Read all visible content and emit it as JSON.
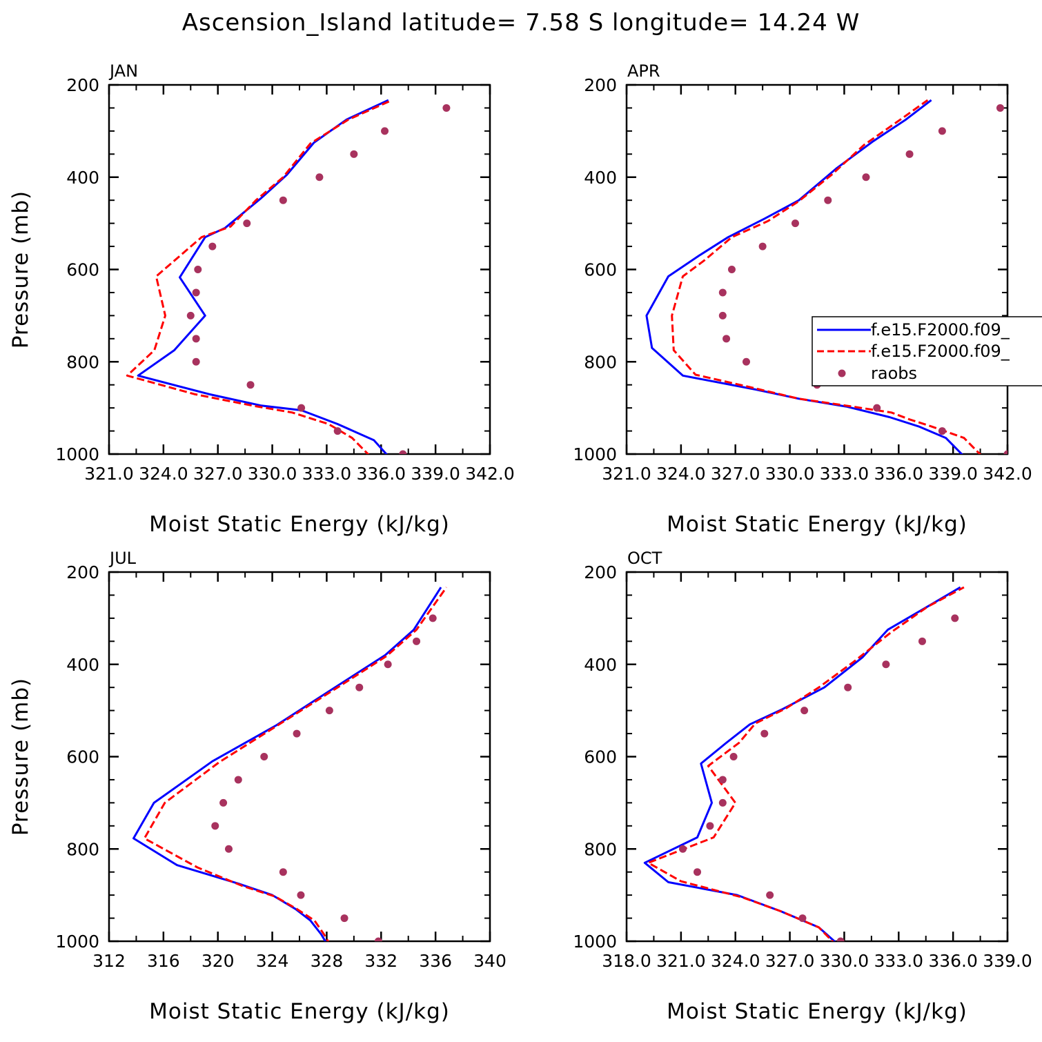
{
  "title": "Ascension_Island  latitude= 7.58 S longitude= 14.24 W",
  "colors": {
    "series1": "#0000ff",
    "series2": "#ff0000",
    "raobs": "#a8325e"
  },
  "legend": {
    "entries": [
      "f.e15.F2000.f09_",
      "f.e15.F2000.f09_",
      "raobs"
    ]
  },
  "chart_data": [
    {
      "type": "line",
      "label": "JAN",
      "xlabel": "Moist Static Energy (kJ/kg)",
      "ylabel": "Pressure (mb)",
      "xlim": [
        321,
        342
      ],
      "ylim": [
        1000,
        200
      ],
      "xticks": [
        321,
        324,
        327,
        330,
        333,
        336,
        339,
        342
      ],
      "xtick_labels": [
        "321.0",
        "324.0",
        "327.0",
        "330.0",
        "333.0",
        "336.0",
        "339.0",
        "342.0"
      ],
      "yticks": [
        200,
        400,
        600,
        800,
        1000
      ],
      "series": [
        {
          "name": "f.e15.F2000.f09_",
          "style": "solid",
          "color": "#0000ff",
          "points": [
            [
              336.4,
              1005
            ],
            [
              335.6,
              970
            ],
            [
              333.6,
              935
            ],
            [
              331.6,
              905
            ],
            [
              329.4,
              895
            ],
            [
              326.5,
              870
            ],
            [
              322.6,
              830
            ],
            [
              324.6,
              775
            ],
            [
              326.3,
              700
            ],
            [
              324.9,
              617
            ],
            [
              326.3,
              530
            ],
            [
              327.4,
              510
            ],
            [
              329.4,
              445
            ],
            [
              330.8,
              395
            ],
            [
              332.3,
              325
            ],
            [
              334.1,
              275
            ],
            [
              336.4,
              233
            ]
          ]
        },
        {
          "name": "f.e15.F2000.f09_",
          "style": "dashed",
          "color": "#ff0000",
          "points": [
            [
              335.4,
              1005
            ],
            [
              334.4,
              965
            ],
            [
              333.1,
              935
            ],
            [
              331.1,
              910
            ],
            [
              328.9,
              895
            ],
            [
              325.7,
              870
            ],
            [
              322.0,
              830
            ],
            [
              323.5,
              775
            ],
            [
              324.1,
              700
            ],
            [
              323.6,
              615
            ],
            [
              326.1,
              530
            ],
            [
              327.7,
              507
            ],
            [
              329.1,
              450
            ],
            [
              330.6,
              400
            ],
            [
              332.1,
              327
            ],
            [
              334.2,
              275
            ],
            [
              336.6,
              233
            ]
          ]
        },
        {
          "name": "raobs",
          "style": "markers",
          "color": "#a8325e",
          "points": [
            [
              339.6,
              250
            ],
            [
              336.2,
              300
            ],
            [
              334.5,
              350
            ],
            [
              332.6,
              400
            ],
            [
              330.6,
              450
            ],
            [
              328.6,
              500
            ],
            [
              326.7,
              550
            ],
            [
              325.9,
              600
            ],
            [
              325.8,
              650
            ],
            [
              325.5,
              700
            ],
            [
              325.8,
              750
            ],
            [
              325.8,
              800
            ],
            [
              328.8,
              850
            ],
            [
              331.6,
              900
            ],
            [
              333.6,
              950
            ],
            [
              337.2,
              1000
            ]
          ]
        }
      ]
    },
    {
      "type": "line",
      "label": "APR",
      "xlabel": "Moist Static Energy (kJ/kg)",
      "ylabel": "",
      "xlim": [
        321,
        342
      ],
      "ylim": [
        1000,
        200
      ],
      "xticks": [
        321,
        324,
        327,
        330,
        333,
        336,
        339,
        342
      ],
      "xtick_labels": [
        "321.0",
        "324.0",
        "327.0",
        "330.0",
        "333.0",
        "336.0",
        "339.0",
        "342.0"
      ],
      "yticks": [
        200,
        400,
        600,
        800,
        1000
      ],
      "series": [
        {
          "name": "f.e15.F2000.f09_",
          "style": "solid",
          "color": "#0000ff",
          "points": [
            [
              339.6,
              1005
            ],
            [
              338.6,
              965
            ],
            [
              337.1,
              940
            ],
            [
              335.5,
              920
            ],
            [
              333.1,
              897
            ],
            [
              330.5,
              880
            ],
            [
              328.1,
              860
            ],
            [
              324.1,
              830
            ],
            [
              322.4,
              770
            ],
            [
              322.1,
              700
            ],
            [
              323.3,
              615
            ],
            [
              325.0,
              570
            ],
            [
              326.6,
              530
            ],
            [
              328.6,
              490
            ],
            [
              330.5,
              450
            ],
            [
              332.6,
              380
            ],
            [
              334.6,
              322
            ],
            [
              336.4,
              275
            ],
            [
              337.8,
              233
            ]
          ]
        },
        {
          "name": "f.e15.F2000.f09_",
          "style": "dashed",
          "color": "#ff0000",
          "points": [
            [
              340.6,
              1005
            ],
            [
              339.6,
              965
            ],
            [
              337.8,
              940
            ],
            [
              336.6,
              925
            ],
            [
              335.6,
              910
            ],
            [
              333.1,
              895
            ],
            [
              330.5,
              880
            ],
            [
              327.8,
              855
            ],
            [
              324.8,
              828
            ],
            [
              323.6,
              775
            ],
            [
              323.5,
              700
            ],
            [
              324.1,
              615
            ],
            [
              325.3,
              580
            ],
            [
              326.8,
              530
            ],
            [
              328.8,
              495
            ],
            [
              330.5,
              452
            ],
            [
              332.3,
              395
            ],
            [
              334.1,
              330
            ],
            [
              336.1,
              275
            ],
            [
              337.6,
              233
            ]
          ]
        },
        {
          "name": "raobs",
          "style": "markers",
          "color": "#a8325e",
          "points": [
            [
              341.6,
              250
            ],
            [
              338.4,
              300
            ],
            [
              336.6,
              350
            ],
            [
              334.2,
              400
            ],
            [
              332.1,
              450
            ],
            [
              330.3,
              500
            ],
            [
              328.5,
              550
            ],
            [
              326.8,
              600
            ],
            [
              326.3,
              650
            ],
            [
              326.3,
              700
            ],
            [
              326.5,
              750
            ],
            [
              327.6,
              800
            ],
            [
              331.5,
              850
            ],
            [
              334.8,
              900
            ],
            [
              338.4,
              950
            ],
            [
              342.0,
              1000
            ]
          ]
        }
      ]
    },
    {
      "type": "line",
      "label": "JUL",
      "xlabel": "Moist Static Energy (kJ/kg)",
      "ylabel": "Pressure (mb)",
      "xlim": [
        312,
        340
      ],
      "ylim": [
        1000,
        200
      ],
      "xticks": [
        312,
        316,
        320,
        324,
        328,
        332,
        336,
        340
      ],
      "xtick_labels": [
        "312",
        "316",
        "320",
        "324",
        "328",
        "332",
        "336",
        "340"
      ],
      "yticks": [
        200,
        400,
        600,
        800,
        1000
      ],
      "series": [
        {
          "name": "f.e15.F2000.f09_",
          "style": "solid",
          "color": "#0000ff",
          "points": [
            [
              328.0,
              1005
            ],
            [
              327.6,
              985
            ],
            [
              326.8,
              955
            ],
            [
              325.7,
              930
            ],
            [
              324.0,
              900
            ],
            [
              321.5,
              875
            ],
            [
              317.0,
              835
            ],
            [
              313.8,
              777
            ],
            [
              315.3,
              700
            ],
            [
              319.6,
              610
            ],
            [
              324.3,
              532
            ],
            [
              328.6,
              450
            ],
            [
              332.3,
              380
            ],
            [
              334.4,
              325
            ],
            [
              336.4,
              233
            ]
          ]
        },
        {
          "name": "f.e15.F2000.f09_",
          "style": "dashed",
          "color": "#ff0000",
          "points": [
            [
              328.3,
              1010
            ],
            [
              327.8,
              985
            ],
            [
              327.1,
              955
            ],
            [
              325.8,
              930
            ],
            [
              324.2,
              903
            ],
            [
              321.8,
              880
            ],
            [
              318.5,
              840
            ],
            [
              314.6,
              777
            ],
            [
              316.1,
              700
            ],
            [
              320.1,
              612
            ],
            [
              324.4,
              532
            ],
            [
              328.8,
              450
            ],
            [
              332.4,
              382
            ],
            [
              334.6,
              325
            ],
            [
              336.8,
              233
            ]
          ]
        },
        {
          "name": "raobs",
          "style": "markers",
          "color": "#a8325e",
          "points": [
            [
              335.8,
              300
            ],
            [
              334.6,
              350
            ],
            [
              332.5,
              400
            ],
            [
              330.4,
              450
            ],
            [
              328.2,
              500
            ],
            [
              325.8,
              550
            ],
            [
              323.4,
              600
            ],
            [
              321.5,
              650
            ],
            [
              320.4,
              700
            ],
            [
              319.8,
              750
            ],
            [
              320.8,
              800
            ],
            [
              324.8,
              850
            ],
            [
              326.1,
              900
            ],
            [
              329.3,
              950
            ],
            [
              331.8,
              1000
            ]
          ]
        }
      ]
    },
    {
      "type": "line",
      "label": "OCT",
      "xlabel": "Moist Static Energy (kJ/kg)",
      "ylabel": "",
      "xlim": [
        318,
        339
      ],
      "ylim": [
        1000,
        200
      ],
      "xticks": [
        318,
        321,
        324,
        327,
        330,
        333,
        336,
        339
      ],
      "xtick_labels": [
        "318.0",
        "321.0",
        "324.0",
        "327.0",
        "330.0",
        "333.0",
        "336.0",
        "339.0"
      ],
      "yticks": [
        200,
        400,
        600,
        800,
        1000
      ],
      "series": [
        {
          "name": "f.e15.F2000.f09_",
          "style": "solid",
          "color": "#0000ff",
          "points": [
            [
              329.6,
              1005
            ],
            [
              328.6,
              970
            ],
            [
              326.5,
              935
            ],
            [
              324.1,
              900
            ],
            [
              320.3,
              872
            ],
            [
              319.0,
              830
            ],
            [
              321.9,
              775
            ],
            [
              322.7,
              700
            ],
            [
              322.1,
              615
            ],
            [
              323.5,
              570
            ],
            [
              324.8,
              530
            ],
            [
              326.6,
              497
            ],
            [
              328.9,
              450
            ],
            [
              331.0,
              385
            ],
            [
              332.4,
              325
            ],
            [
              334.8,
              270
            ],
            [
              336.4,
              233
            ]
          ]
        },
        {
          "name": "f.e15.F2000.f09_",
          "style": "dashed",
          "color": "#ff0000",
          "points": [
            [
              329.6,
              1010
            ],
            [
              328.6,
              970
            ],
            [
              326.5,
              935
            ],
            [
              324.4,
              905
            ],
            [
              321.0,
              870
            ],
            [
              319.2,
              830
            ],
            [
              322.8,
              775
            ],
            [
              324.0,
              700
            ],
            [
              322.5,
              620
            ],
            [
              324.2,
              570
            ],
            [
              325.1,
              528
            ],
            [
              326.8,
              495
            ],
            [
              328.6,
              450
            ],
            [
              330.5,
              395
            ],
            [
              332.6,
              330
            ],
            [
              334.6,
              275
            ],
            [
              336.6,
              233
            ]
          ]
        },
        {
          "name": "raobs",
          "style": "markers",
          "color": "#a8325e",
          "points": [
            [
              336.1,
              300
            ],
            [
              334.3,
              350
            ],
            [
              332.3,
              400
            ],
            [
              330.2,
              450
            ],
            [
              327.8,
              500
            ],
            [
              325.6,
              550
            ],
            [
              323.9,
              600
            ],
            [
              323.3,
              650
            ],
            [
              323.3,
              700
            ],
            [
              322.6,
              750
            ],
            [
              321.1,
              800
            ],
            [
              321.9,
              850
            ],
            [
              325.9,
              900
            ],
            [
              327.7,
              950
            ],
            [
              329.8,
              1000
            ]
          ]
        }
      ]
    }
  ]
}
